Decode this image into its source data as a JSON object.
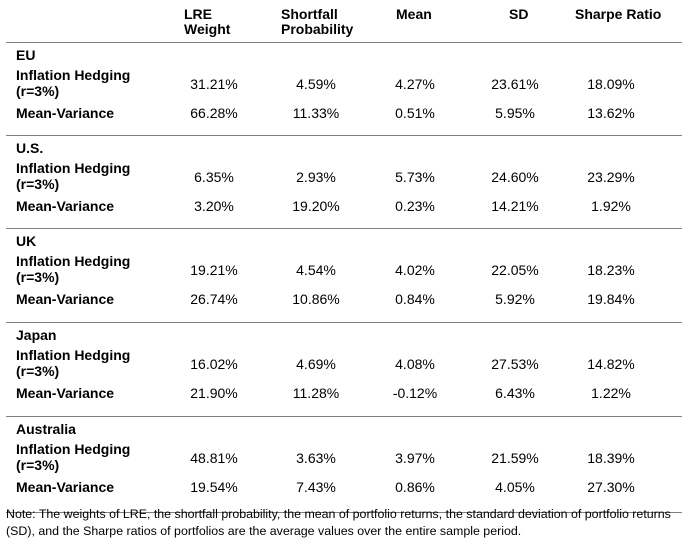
{
  "headers": {
    "lre": [
      "LRE",
      "Weight"
    ],
    "shortfall": [
      "Shortfall",
      "Probability"
    ],
    "mean": "Mean",
    "sd": "SD",
    "sharpe": "Sharpe Ratio"
  },
  "groups": [
    {
      "name": "EU",
      "rows": [
        {
          "label": [
            "Inflation Hedging",
            "(r=3%)"
          ],
          "lre": "31.21%",
          "shortfall": "4.59%",
          "mean": "4.27%",
          "sd": "23.61%",
          "sharpe": "18.09%"
        },
        {
          "label": [
            "Mean-Variance"
          ],
          "lre": "66.28%",
          "shortfall": "11.33%",
          "mean": "0.51%",
          "sd": "5.95%",
          "sharpe": "13.62%"
        }
      ]
    },
    {
      "name": "U.S.",
      "rows": [
        {
          "label": [
            "Inflation Hedging",
            "(r=3%)"
          ],
          "lre": "6.35%",
          "shortfall": "2.93%",
          "mean": "5.73%",
          "sd": "24.60%",
          "sharpe": "23.29%"
        },
        {
          "label": [
            "Mean-Variance"
          ],
          "lre": "3.20%",
          "shortfall": "19.20%",
          "mean": "0.23%",
          "sd": "14.21%",
          "sharpe": "1.92%"
        }
      ]
    },
    {
      "name": "UK",
      "rows": [
        {
          "label": [
            "Inflation Hedging",
            "(r=3%)"
          ],
          "lre": "19.21%",
          "shortfall": "4.54%",
          "mean": "4.02%",
          "sd": "22.05%",
          "sharpe": "18.23%"
        },
        {
          "label": [
            "Mean-Variance"
          ],
          "lre": "26.74%",
          "shortfall": "10.86%",
          "mean": "0.84%",
          "sd": "5.92%",
          "sharpe": "19.84%"
        }
      ]
    },
    {
      "name": "Japan",
      "rows": [
        {
          "label": [
            "Inflation Hedging",
            "(r=3%)"
          ],
          "lre": "16.02%",
          "shortfall": "4.69%",
          "mean": "4.08%",
          "sd": "27.53%",
          "sharpe": "14.82%"
        },
        {
          "label": [
            "Mean-Variance"
          ],
          "lre": "21.90%",
          "shortfall": "11.28%",
          "mean": "-0.12%",
          "sd": "6.43%",
          "sharpe": "1.22%"
        }
      ]
    },
    {
      "name": "Australia",
      "rows": [
        {
          "label": [
            "Inflation Hedging",
            "(r=3%)"
          ],
          "lre": "48.81%",
          "shortfall": "3.63%",
          "mean": "3.97%",
          "sd": "21.59%",
          "sharpe": "18.39%"
        },
        {
          "label": [
            "Mean-Variance"
          ],
          "lre": "19.54%",
          "shortfall": "7.43%",
          "mean": "0.86%",
          "sd": "4.05%",
          "sharpe": "27.30%"
        }
      ]
    }
  ],
  "note": "Note: The weights of LRE, the shortfall probability, the mean of portfolio returns, the standard deviation of portfolio returns (SD), and the Sharpe ratios of portfolios are the average values over the entire sample period."
}
